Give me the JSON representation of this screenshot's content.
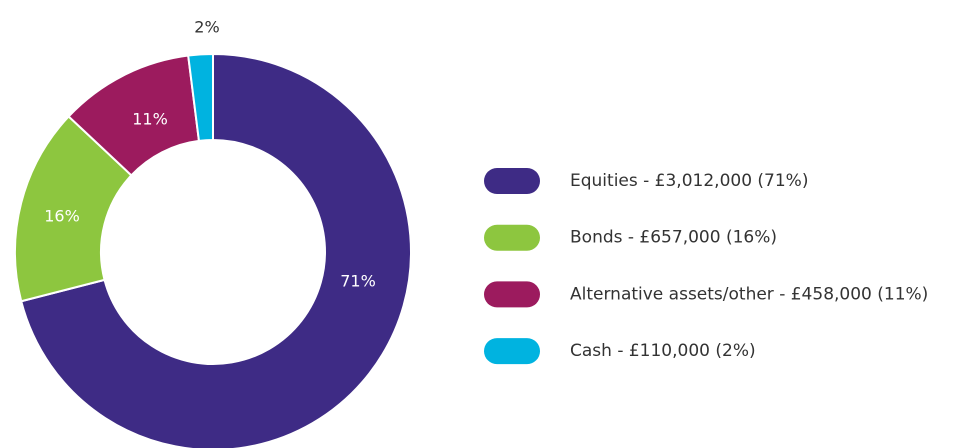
{
  "chart_data": {
    "type": "donut",
    "categories": [
      "Equities - £3,012,000 (71%)",
      "Bonds - £657,000 (16%)",
      "Alternative assets/other - £458,000 (11%)",
      "Cash - £110,000 (2%)"
    ],
    "values": [
      71,
      16,
      11,
      2
    ],
    "value_labels": [
      "71%",
      "16%",
      "11%",
      "2%"
    ],
    "colors": [
      "#3e2b85",
      "#8dc63f",
      "#9c1b5e",
      "#00b3e0"
    ]
  }
}
